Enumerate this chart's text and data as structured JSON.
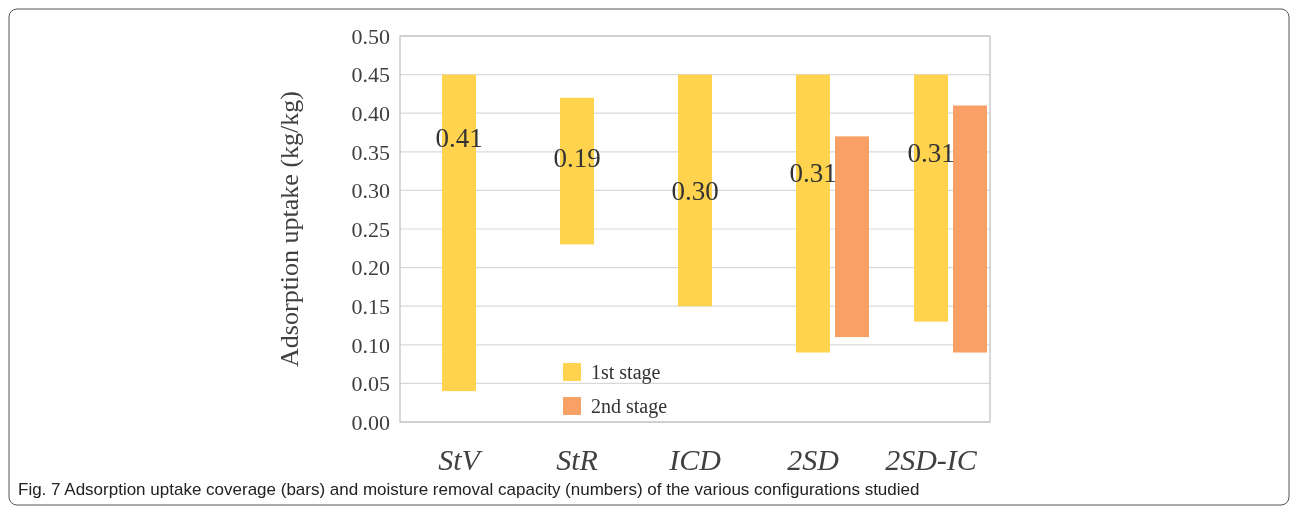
{
  "chart_data": {
    "type": "bar",
    "ylabel": "Adsorption uptake (kg/kg)",
    "categories": [
      "StV",
      "StR",
      "ICD",
      "2SD",
      "2SD-IC"
    ],
    "series": [
      {
        "name": "1st stage",
        "color": "#ffd34e",
        "values": [
          0.41,
          0.19,
          0.3,
          0.36,
          0.32
        ],
        "base": [
          0.04,
          0.23,
          0.15,
          0.09,
          0.13
        ]
      },
      {
        "name": "2nd stage",
        "color": "#f9a066",
        "values": [
          null,
          null,
          null,
          0.26,
          0.32
        ],
        "base": [
          null,
          null,
          null,
          0.11,
          0.09
        ]
      }
    ],
    "ylim": [
      0,
      0.5
    ],
    "yticks": [
      {
        "value": 0,
        "label": "0.00"
      },
      {
        "value": 0.05,
        "label": "0.05"
      },
      {
        "value": 0.1,
        "label": "0.10"
      },
      {
        "value": 0.15,
        "label": "0.15"
      },
      {
        "value": 0.2,
        "label": "0.20"
      },
      {
        "value": 0.25,
        "label": "0.25"
      },
      {
        "value": 0.3,
        "label": "0.30"
      },
      {
        "value": 0.35,
        "label": "0.35"
      },
      {
        "value": 0.4,
        "label": "0.40"
      },
      {
        "value": 0.45,
        "label": "0.45"
      },
      {
        "value": 0.5,
        "label": "0.50"
      }
    ],
    "grid": "y",
    "legend": "bottom",
    "annotations": [
      "0.41",
      "0.19",
      "0.30",
      "0.31",
      "0.31",
      "Fig. 7  Adsorption uptake coverage (bars) and moisture removal capacity (numbers) of the various configurations studied"
    ]
  }
}
